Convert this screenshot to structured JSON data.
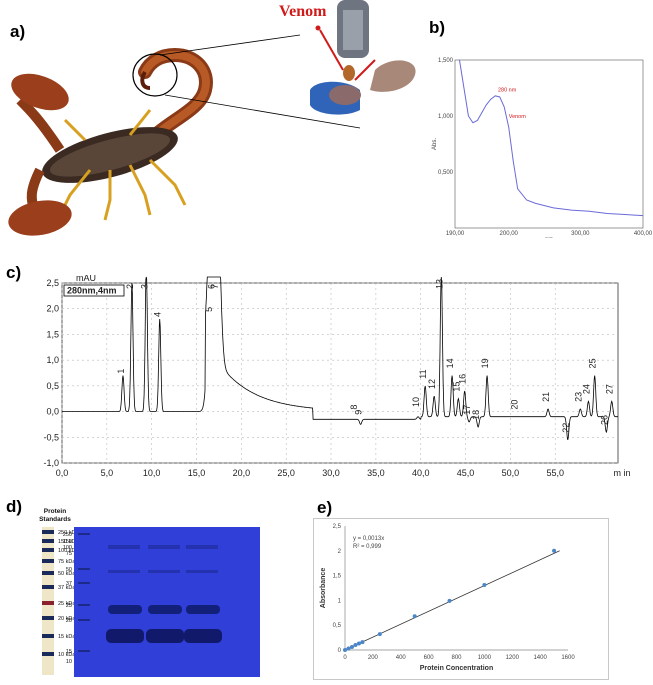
{
  "panels": {
    "a": "a)",
    "b": "b)",
    "c": "c)",
    "d": "d)",
    "e": "e)"
  },
  "panel_a": {
    "venom_label": "Venom"
  },
  "colors": {
    "venom_red": "#d11b1b",
    "uv_line": "#6a6ad8",
    "gel_blue": "#2f3fd8",
    "trend_line": "#333333",
    "points": "#4a86c8"
  },
  "chart_data": [
    {
      "id": "b",
      "type": "line",
      "x_ticks": [
        "190,00",
        "200,00",
        "300,00",
        "400,00"
      ],
      "y_ticks": [
        "1,500",
        "1,000",
        "0,500"
      ],
      "ylabel": "Abs.",
      "xlabel": "nm",
      "xlim": [
        190,
        400
      ],
      "ylim": [
        0,
        1.5
      ],
      "x": [
        195,
        200,
        205,
        210,
        215,
        220,
        225,
        230,
        235,
        240,
        245,
        250,
        255,
        260,
        270,
        280,
        290,
        300,
        320,
        340,
        360,
        380,
        400
      ],
      "y": [
        1.5,
        1.25,
        1.0,
        0.94,
        0.96,
        1.03,
        1.1,
        1.15,
        1.18,
        1.17,
        1.08,
        0.9,
        0.6,
        0.35,
        0.25,
        0.22,
        0.2,
        0.18,
        0.16,
        0.15,
        0.13,
        0.12,
        0.11
      ],
      "annotations": [
        "280 nm",
        "Venom"
      ]
    },
    {
      "id": "c",
      "type": "line",
      "legend": "280nm,4nm",
      "ylabel": "mAU",
      "xlabel": "m in",
      "xlim": [
        0,
        62
      ],
      "ylim": [
        -1.0,
        2.5
      ],
      "y_ticks": [
        "2,5",
        "2,0",
        "1,5",
        "1,0",
        "0,5",
        "0,0",
        "-0,5",
        "-1,0"
      ],
      "x_ticks": [
        "0,0",
        "5,0",
        "10,0",
        "15,0",
        "20,0",
        "25,0",
        "30,0",
        "35,0",
        "40,0",
        "45,0",
        "50,0",
        "55,0",
        "m in"
      ],
      "peaks": [
        {
          "label": "1",
          "x": 6.8,
          "y": 0.7
        },
        {
          "label": "2",
          "x": 7.8,
          "y": 2.5
        },
        {
          "label": "3",
          "x": 9.4,
          "y": 2.8
        },
        {
          "label": "4",
          "x": 10.9,
          "y": 1.8
        },
        {
          "label": "5",
          "x": 16.6,
          "y": 1.9
        },
        {
          "label": "6",
          "x": 16.9,
          "y": 2.8
        },
        {
          "label": "7",
          "x": 17.3,
          "y": 2.8
        },
        {
          "label": "8",
          "x": 32.8,
          "y": 0.0
        },
        {
          "label": "9",
          "x": 33.3,
          "y": -0.1
        },
        {
          "label": "10",
          "x": 39.7,
          "y": 0.05
        },
        {
          "label": "11",
          "x": 40.5,
          "y": 0.6
        },
        {
          "label": "12",
          "x": 41.5,
          "y": 0.4
        },
        {
          "label": "13",
          "x": 42.3,
          "y": 2.8
        },
        {
          "label": "14",
          "x": 43.5,
          "y": 0.8
        },
        {
          "label": "15",
          "x": 44.2,
          "y": 0.35
        },
        {
          "label": "16",
          "x": 44.9,
          "y": 0.5
        },
        {
          "label": "17",
          "x": 45.4,
          "y": -0.1
        },
        {
          "label": "18",
          "x": 46.4,
          "y": -0.2
        },
        {
          "label": "19",
          "x": 47.4,
          "y": 0.8
        },
        {
          "label": "20",
          "x": 50.7,
          "y": 0.0
        },
        {
          "label": "21",
          "x": 54.2,
          "y": 0.15
        },
        {
          "label": "22",
          "x": 56.4,
          "y": -0.45
        },
        {
          "label": "23",
          "x": 57.8,
          "y": 0.15
        },
        {
          "label": "24",
          "x": 58.7,
          "y": 0.3
        },
        {
          "label": "25",
          "x": 59.4,
          "y": 0.8
        },
        {
          "label": "26",
          "x": 60.7,
          "y": -0.3
        },
        {
          "label": "27",
          "x": 61.3,
          "y": 0.3
        }
      ]
    },
    {
      "id": "e",
      "type": "scatter",
      "ylabel": "Absorbance",
      "xlabel": "Protein Concentration",
      "equation": "y = 0,0013x",
      "r2": "R² = 0,999",
      "xlim": [
        0,
        1600
      ],
      "ylim": [
        0,
        2.5
      ],
      "x_ticks": [
        "0",
        "200",
        "400",
        "600",
        "800",
        "1000",
        "1200",
        "1400",
        "1600"
      ],
      "y_ticks": [
        "0",
        "0,5",
        "1",
        "1,5",
        "2",
        "2,5"
      ],
      "x": [
        0,
        25,
        50,
        75,
        100,
        125,
        250,
        500,
        750,
        1000,
        1500
      ],
      "y": [
        0.0,
        0.03,
        0.06,
        0.1,
        0.13,
        0.16,
        0.32,
        0.68,
        0.99,
        1.31,
        2.0
      ]
    }
  ],
  "panel_d": {
    "title_line1": "Protein",
    "title_line2": "Standards",
    "ladder_labels": [
      "250 kDa",
      "150 kDa",
      "100 kDa",
      "75 kDa",
      "50 kDa",
      "37 kDa",
      "25 kDa",
      "20 kDa",
      "15 kDa",
      "10 kDa"
    ],
    "gel_labels": [
      "250",
      "150",
      "100",
      "75",
      "50",
      "37",
      "25",
      "20",
      "15",
      "10"
    ]
  }
}
